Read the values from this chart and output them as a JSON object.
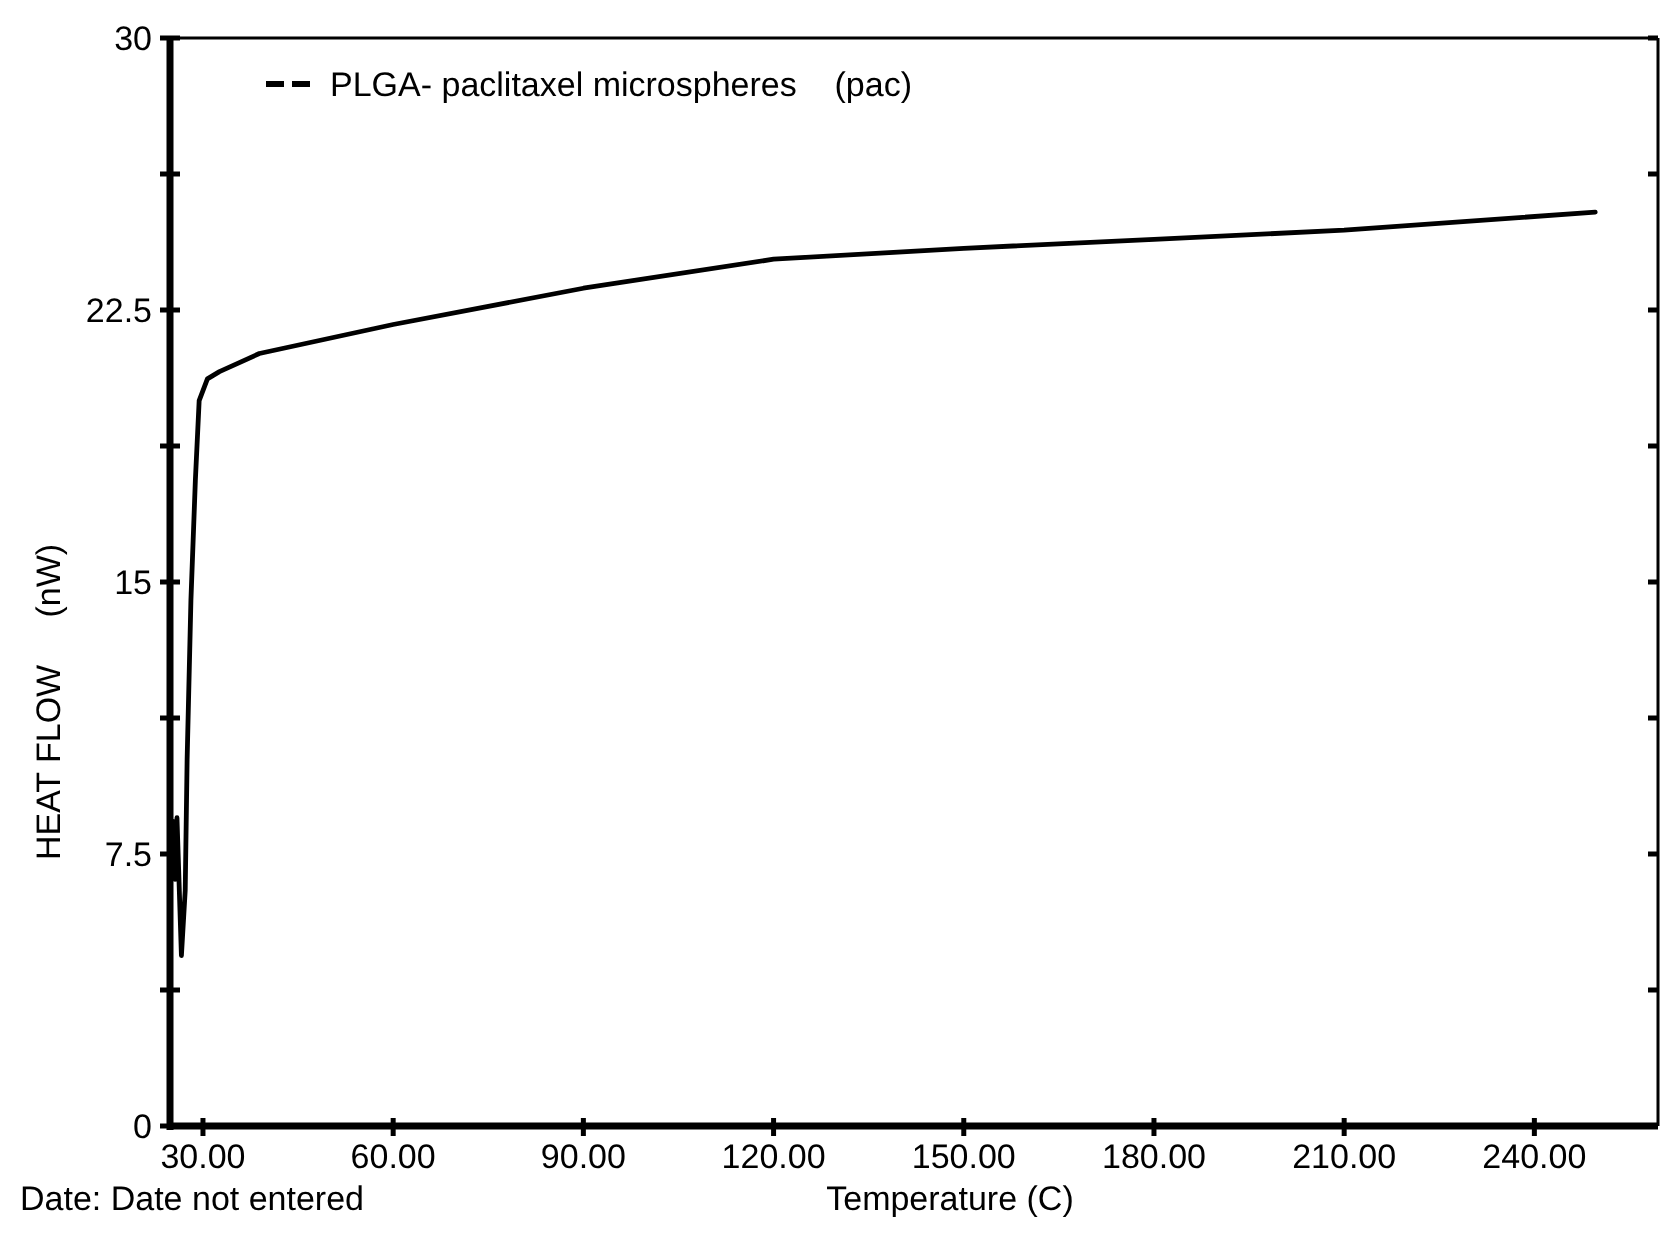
{
  "chart_data": {
    "type": "line",
    "xlabel": "Temperature (C)",
    "ylabel": "HEAT FLOW     (nW)",
    "annotations": [
      "Date: Date not entered"
    ],
    "xlim": [
      24.8,
      259.5
    ],
    "ylim": [
      0,
      30
    ],
    "xticks": [
      {
        "value": 30,
        "label": "30.00"
      },
      {
        "value": 60,
        "label": "60.00"
      },
      {
        "value": 90,
        "label": "90.00"
      },
      {
        "value": 120,
        "label": "120.00"
      },
      {
        "value": 150,
        "label": "150.00"
      },
      {
        "value": 180,
        "label": "180.00"
      },
      {
        "value": 210,
        "label": "210.00"
      },
      {
        "value": 240,
        "label": "240.00"
      }
    ],
    "yticks": [
      0,
      {
        "value": 3.75,
        "label": null
      },
      7.5,
      {
        "value": 11.25,
        "label": null
      },
      15,
      {
        "value": 18.75,
        "label": null
      },
      22.5,
      {
        "value": 26.25,
        "label": null
      },
      30
    ],
    "grid": false,
    "legend": "top left",
    "line_style": "solid",
    "marker": "none",
    "series": [
      {
        "name": "PLGA- paclitaxel microspheres    (pac)",
        "color": "#000000",
        "x": [
          25.3,
          25.6,
          25.9,
          26.6,
          27.2,
          27.5,
          28.1,
          28.8,
          29.4,
          30.7,
          32.6,
          38.9,
          60,
          90,
          120,
          150,
          180,
          210,
          249.6
        ],
        "values": [
          8.4,
          6.8,
          8.5,
          4.7,
          6.5,
          10.1,
          14.5,
          17.8,
          20.0,
          20.6,
          20.8,
          21.3,
          22.1,
          23.1,
          23.9,
          24.2,
          24.45,
          24.7,
          25.2
        ]
      }
    ]
  }
}
